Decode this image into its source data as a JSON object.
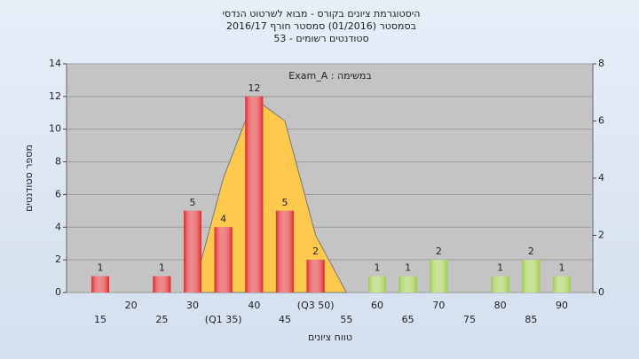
{
  "chart_data": {
    "type": "bar",
    "title": "היסטוגרמת ציונים בקורס - מבוא לשרטוט הנדסי",
    "subtitle": "בסמסטר  (01/2016)  סמסטר חורף 2016/17",
    "subtitle2": "סטודנטים רשומים - 53",
    "annotation": "במשימה : Exam_A",
    "ylabel": "מספר סטודנטים",
    "xlabel": "טווח ציונים",
    "categories": [
      "15",
      "20",
      "25",
      "30",
      "(Q1 35)",
      "40",
      "45",
      "(Q3 50)",
      "55",
      "60",
      "65",
      "70",
      "75",
      "80",
      "85",
      "90"
    ],
    "values": [
      1,
      null,
      1,
      5,
      4,
      12,
      5,
      2,
      null,
      1,
      1,
      2,
      null,
      1,
      2,
      1
    ],
    "colors": [
      "#e0252a",
      null,
      "#e0252a",
      "#e0252a",
      "#e0252a",
      "#e0252a",
      "#e0252a",
      "#e0252a",
      null,
      "#9ccc4a",
      "#9ccc4a",
      "#9ccc4a",
      null,
      "#9ccc4a",
      "#9ccc4a",
      "#9ccc4a"
    ],
    "area": {
      "axis": "y2",
      "color": "#ffc94d",
      "values": [
        null,
        null,
        null,
        0,
        4,
        6.8,
        6,
        2,
        0,
        null,
        null,
        null,
        null,
        null,
        null,
        null
      ]
    },
    "ylim": [
      0,
      14
    ],
    "yticks": [
      0,
      2,
      4,
      6,
      8,
      10,
      12,
      14
    ],
    "y2lim": [
      0,
      8
    ],
    "y2ticks": [
      0,
      2,
      4,
      6,
      8
    ],
    "grid": true
  }
}
